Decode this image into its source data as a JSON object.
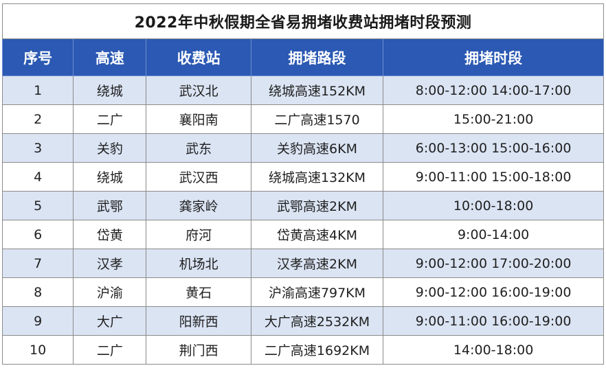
{
  "table": {
    "title": "2022年中秋假期全省易拥堵收费站拥堵时段预测",
    "headers": [
      "序号",
      "高速",
      "收费站",
      "拥堵路段",
      "拥堵时段"
    ],
    "rows": [
      [
        "1",
        "绕城",
        "武汉北",
        "绕城高速152KM",
        "8:00-12:00 14:00-17:00"
      ],
      [
        "2",
        "二广",
        "襄阳南",
        "二广高速1570",
        "15:00-21:00"
      ],
      [
        "3",
        "关豹",
        "武东",
        "关豹高速6KM",
        "6:00-13:00 15:00-16:00"
      ],
      [
        "4",
        "绕城",
        "武汉西",
        "绕城高速132KM",
        "9:00-11:00 15:00-18:00"
      ],
      [
        "5",
        "武鄂",
        "龚家岭",
        "武鄂高速2KM",
        "10:00-18:00"
      ],
      [
        "6",
        "岱黄",
        "府河",
        "岱黄高速4KM",
        "9:00-14:00"
      ],
      [
        "7",
        "汉孝",
        "机场北",
        "汉孝高速2KM",
        "9:00-12:00 17:00-20:00"
      ],
      [
        "8",
        "沪渝",
        "黄石",
        "沪渝高速797KM",
        "9:00-12:00 16:00-19:00"
      ],
      [
        "9",
        "大广",
        "阳新西",
        "大广高速2532KM",
        "9:00-11:00 16:00-19:00"
      ],
      [
        "10",
        "二广",
        "荆门西",
        "二广高速1692KM",
        "14:00-18:00"
      ]
    ],
    "colors": {
      "header_bg": "#2b59b3",
      "header_text": "#ffffff",
      "stripe_bg": "#dbe4f3",
      "border": "#8a8a8a"
    }
  }
}
